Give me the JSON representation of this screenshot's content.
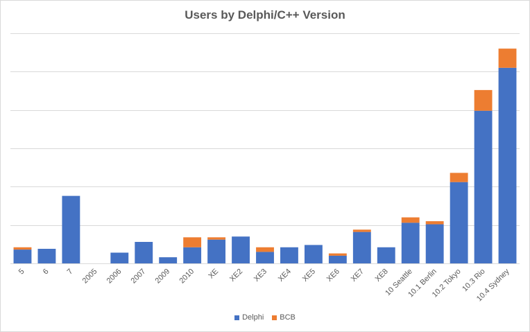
{
  "chart_data": {
    "type": "bar",
    "stacked": true,
    "title": "Users by Delphi/C++ Version",
    "categories": [
      "5",
      "6",
      "7",
      "2005",
      "2006",
      "2007",
      "2009",
      "2010",
      "XE",
      "XE2",
      "XE3",
      "XE4",
      "XE5",
      "XE6",
      "XE7",
      "XE8",
      "10 Seattle",
      "10.1 Berlin",
      "10.2 Tokyo",
      "10.3 Rio",
      "10.4 Sydney"
    ],
    "series": [
      {
        "name": "Delphi",
        "color": "#4472c4",
        "values": [
          18,
          19,
          88,
          0,
          14,
          28,
          8,
          21,
          31,
          35,
          15,
          21,
          24,
          10,
          41,
          21,
          53,
          51,
          106,
          199,
          255
        ]
      },
      {
        "name": "BCB",
        "color": "#ed7d31",
        "values": [
          3,
          0,
          0,
          0,
          0,
          0,
          0,
          13,
          3,
          0,
          6,
          0,
          0,
          3,
          3,
          0,
          7,
          4,
          12,
          27,
          25
        ]
      }
    ],
    "ylim": [
      0,
      300
    ],
    "ytick_step": 50,
    "grid": true,
    "legend_position": "bottom"
  }
}
